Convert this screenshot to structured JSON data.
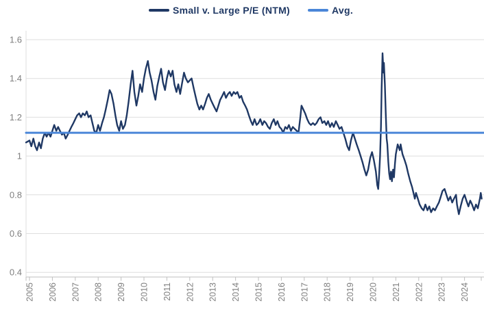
{
  "legend": {
    "series_label": "Small v. Large P/E (NTM)",
    "avg_label": "Avg."
  },
  "colors": {
    "series_line": "#1F3864",
    "avg_line": "#4A86D8",
    "legend_text": "#1F3864",
    "axis_text": "#7F7F7F",
    "gridline": "#DEDEDE",
    "axis_line": "#BFBFBF"
  },
  "chart_data": {
    "type": "line",
    "title": "",
    "xlabel": "",
    "ylabel": "",
    "grid": "horizontal-only",
    "legend_position": "top-center",
    "y_axis": {
      "range": [
        0.4,
        1.6
      ],
      "tick_values": [
        1.6,
        1.4,
        1.2,
        1.0,
        0.8,
        0.6,
        0.4
      ],
      "tick_labels": [
        "1.6",
        "1.4",
        "1.2",
        "1",
        "0.8",
        "0.6",
        "0.4"
      ]
    },
    "x_axis": {
      "range": [
        2004.85,
        2024.9
      ],
      "tick_values": [
        2005,
        2006,
        2007,
        2008,
        2009,
        2010,
        2011,
        2012,
        2013,
        2014,
        2015,
        2016,
        2017,
        2018,
        2019,
        2020,
        2021,
        2022,
        2023,
        2024
      ],
      "tick_labels": [
        "2005",
        "2006",
        "2007",
        "2008",
        "2009",
        "2010",
        "2011",
        "2012",
        "2013",
        "2014",
        "2015",
        "2016",
        "2017",
        "2018",
        "2019",
        "2020",
        "2021",
        "2022",
        "2023",
        "2024"
      ],
      "label_rotation_deg": -90
    },
    "avg": {
      "label": "Avg.",
      "value": 1.12
    },
    "series": [
      {
        "name": "Small v. Large P/E (NTM)",
        "points": [
          [
            2004.85,
            1.07
          ],
          [
            2005.0,
            1.08
          ],
          [
            2005.08,
            1.05
          ],
          [
            2005.17,
            1.09
          ],
          [
            2005.25,
            1.05
          ],
          [
            2005.33,
            1.03
          ],
          [
            2005.42,
            1.07
          ],
          [
            2005.5,
            1.04
          ],
          [
            2005.58,
            1.09
          ],
          [
            2005.67,
            1.12
          ],
          [
            2005.75,
            1.1
          ],
          [
            2005.83,
            1.12
          ],
          [
            2005.92,
            1.1
          ],
          [
            2006.0,
            1.13
          ],
          [
            2006.08,
            1.16
          ],
          [
            2006.17,
            1.13
          ],
          [
            2006.25,
            1.15
          ],
          [
            2006.33,
            1.13
          ],
          [
            2006.42,
            1.11
          ],
          [
            2006.5,
            1.12
          ],
          [
            2006.58,
            1.09
          ],
          [
            2006.67,
            1.11
          ],
          [
            2006.75,
            1.13
          ],
          [
            2006.83,
            1.15
          ],
          [
            2006.92,
            1.17
          ],
          [
            2007.0,
            1.19
          ],
          [
            2007.08,
            1.21
          ],
          [
            2007.17,
            1.22
          ],
          [
            2007.25,
            1.2
          ],
          [
            2007.33,
            1.22
          ],
          [
            2007.42,
            1.21
          ],
          [
            2007.5,
            1.23
          ],
          [
            2007.58,
            1.2
          ],
          [
            2007.67,
            1.21
          ],
          [
            2007.75,
            1.17
          ],
          [
            2007.83,
            1.13
          ],
          [
            2007.92,
            1.12
          ],
          [
            2008.0,
            1.16
          ],
          [
            2008.08,
            1.13
          ],
          [
            2008.17,
            1.17
          ],
          [
            2008.25,
            1.2
          ],
          [
            2008.33,
            1.24
          ],
          [
            2008.42,
            1.29
          ],
          [
            2008.5,
            1.34
          ],
          [
            2008.58,
            1.32
          ],
          [
            2008.67,
            1.27
          ],
          [
            2008.75,
            1.21
          ],
          [
            2008.83,
            1.16
          ],
          [
            2008.92,
            1.13
          ],
          [
            2009.0,
            1.18
          ],
          [
            2009.08,
            1.14
          ],
          [
            2009.17,
            1.16
          ],
          [
            2009.25,
            1.21
          ],
          [
            2009.33,
            1.28
          ],
          [
            2009.42,
            1.37
          ],
          [
            2009.5,
            1.44
          ],
          [
            2009.58,
            1.33
          ],
          [
            2009.67,
            1.26
          ],
          [
            2009.75,
            1.31
          ],
          [
            2009.83,
            1.37
          ],
          [
            2009.92,
            1.33
          ],
          [
            2010.0,
            1.4
          ],
          [
            2010.08,
            1.45
          ],
          [
            2010.17,
            1.49
          ],
          [
            2010.25,
            1.43
          ],
          [
            2010.33,
            1.39
          ],
          [
            2010.42,
            1.33
          ],
          [
            2010.5,
            1.29
          ],
          [
            2010.58,
            1.36
          ],
          [
            2010.67,
            1.41
          ],
          [
            2010.75,
            1.45
          ],
          [
            2010.83,
            1.38
          ],
          [
            2010.92,
            1.34
          ],
          [
            2011.0,
            1.4
          ],
          [
            2011.08,
            1.44
          ],
          [
            2011.17,
            1.41
          ],
          [
            2011.25,
            1.44
          ],
          [
            2011.33,
            1.37
          ],
          [
            2011.42,
            1.33
          ],
          [
            2011.5,
            1.37
          ],
          [
            2011.58,
            1.32
          ],
          [
            2011.67,
            1.38
          ],
          [
            2011.75,
            1.43
          ],
          [
            2011.83,
            1.4
          ],
          [
            2011.92,
            1.38
          ],
          [
            2012.0,
            1.39
          ],
          [
            2012.08,
            1.4
          ],
          [
            2012.17,
            1.35
          ],
          [
            2012.25,
            1.31
          ],
          [
            2012.33,
            1.27
          ],
          [
            2012.42,
            1.24
          ],
          [
            2012.5,
            1.26
          ],
          [
            2012.58,
            1.24
          ],
          [
            2012.67,
            1.27
          ],
          [
            2012.75,
            1.3
          ],
          [
            2012.83,
            1.32
          ],
          [
            2012.92,
            1.29
          ],
          [
            2013.0,
            1.27
          ],
          [
            2013.08,
            1.25
          ],
          [
            2013.17,
            1.23
          ],
          [
            2013.25,
            1.26
          ],
          [
            2013.33,
            1.29
          ],
          [
            2013.42,
            1.31
          ],
          [
            2013.5,
            1.33
          ],
          [
            2013.58,
            1.3
          ],
          [
            2013.67,
            1.32
          ],
          [
            2013.75,
            1.33
          ],
          [
            2013.83,
            1.31
          ],
          [
            2013.92,
            1.33
          ],
          [
            2014.0,
            1.32
          ],
          [
            2014.08,
            1.33
          ],
          [
            2014.17,
            1.3
          ],
          [
            2014.25,
            1.31
          ],
          [
            2014.33,
            1.28
          ],
          [
            2014.42,
            1.26
          ],
          [
            2014.5,
            1.24
          ],
          [
            2014.58,
            1.21
          ],
          [
            2014.67,
            1.18
          ],
          [
            2014.75,
            1.16
          ],
          [
            2014.83,
            1.19
          ],
          [
            2014.92,
            1.16
          ],
          [
            2015.0,
            1.17
          ],
          [
            2015.08,
            1.19
          ],
          [
            2015.17,
            1.16
          ],
          [
            2015.25,
            1.18
          ],
          [
            2015.33,
            1.17
          ],
          [
            2015.42,
            1.15
          ],
          [
            2015.5,
            1.14
          ],
          [
            2015.58,
            1.17
          ],
          [
            2015.67,
            1.19
          ],
          [
            2015.75,
            1.16
          ],
          [
            2015.83,
            1.18
          ],
          [
            2015.92,
            1.15
          ],
          [
            2016.0,
            1.14
          ],
          [
            2016.08,
            1.12
          ],
          [
            2016.17,
            1.15
          ],
          [
            2016.25,
            1.14
          ],
          [
            2016.33,
            1.16
          ],
          [
            2016.42,
            1.13
          ],
          [
            2016.5,
            1.15
          ],
          [
            2016.58,
            1.14
          ],
          [
            2016.67,
            1.13
          ],
          [
            2016.75,
            1.12
          ],
          [
            2016.83,
            1.2
          ],
          [
            2016.88,
            1.26
          ],
          [
            2016.96,
            1.24
          ],
          [
            2017.04,
            1.22
          ],
          [
            2017.13,
            1.19
          ],
          [
            2017.21,
            1.17
          ],
          [
            2017.29,
            1.16
          ],
          [
            2017.38,
            1.17
          ],
          [
            2017.46,
            1.16
          ],
          [
            2017.54,
            1.17
          ],
          [
            2017.63,
            1.19
          ],
          [
            2017.71,
            1.2
          ],
          [
            2017.79,
            1.17
          ],
          [
            2017.88,
            1.18
          ],
          [
            2017.96,
            1.16
          ],
          [
            2018.04,
            1.18
          ],
          [
            2018.13,
            1.15
          ],
          [
            2018.21,
            1.17
          ],
          [
            2018.29,
            1.15
          ],
          [
            2018.38,
            1.18
          ],
          [
            2018.46,
            1.16
          ],
          [
            2018.54,
            1.14
          ],
          [
            2018.63,
            1.15
          ],
          [
            2018.71,
            1.12
          ],
          [
            2018.79,
            1.09
          ],
          [
            2018.88,
            1.05
          ],
          [
            2018.96,
            1.03
          ],
          [
            2019.04,
            1.08
          ],
          [
            2019.13,
            1.12
          ],
          [
            2019.21,
            1.09
          ],
          [
            2019.29,
            1.06
          ],
          [
            2019.38,
            1.03
          ],
          [
            2019.46,
            1.0
          ],
          [
            2019.54,
            0.97
          ],
          [
            2019.63,
            0.93
          ],
          [
            2019.71,
            0.9
          ],
          [
            2019.79,
            0.93
          ],
          [
            2019.88,
            0.99
          ],
          [
            2019.96,
            1.02
          ],
          [
            2020.04,
            0.98
          ],
          [
            2020.13,
            0.92
          ],
          [
            2020.19,
            0.85
          ],
          [
            2020.23,
            0.83
          ],
          [
            2020.27,
            0.9
          ],
          [
            2020.31,
            1.0
          ],
          [
            2020.35,
            1.15
          ],
          [
            2020.38,
            1.35
          ],
          [
            2020.42,
            1.53
          ],
          [
            2020.46,
            1.43
          ],
          [
            2020.48,
            1.48
          ],
          [
            2020.52,
            1.37
          ],
          [
            2020.56,
            1.22
          ],
          [
            2020.6,
            1.09
          ],
          [
            2020.63,
            1.06
          ],
          [
            2020.67,
            0.97
          ],
          [
            2020.71,
            0.91
          ],
          [
            2020.75,
            0.88
          ],
          [
            2020.79,
            0.92
          ],
          [
            2020.83,
            0.87
          ],
          [
            2020.88,
            0.93
          ],
          [
            2020.92,
            0.89
          ],
          [
            2020.96,
            0.96
          ],
          [
            2021.0,
            1.01
          ],
          [
            2021.08,
            1.06
          ],
          [
            2021.17,
            1.03
          ],
          [
            2021.21,
            1.06
          ],
          [
            2021.29,
            1.01
          ],
          [
            2021.38,
            0.98
          ],
          [
            2021.46,
            0.95
          ],
          [
            2021.54,
            0.91
          ],
          [
            2021.63,
            0.87
          ],
          [
            2021.71,
            0.84
          ],
          [
            2021.79,
            0.8
          ],
          [
            2021.83,
            0.78
          ],
          [
            2021.88,
            0.81
          ],
          [
            2021.96,
            0.78
          ],
          [
            2022.04,
            0.75
          ],
          [
            2022.13,
            0.73
          ],
          [
            2022.21,
            0.72
          ],
          [
            2022.29,
            0.75
          ],
          [
            2022.38,
            0.72
          ],
          [
            2022.46,
            0.74
          ],
          [
            2022.54,
            0.71
          ],
          [
            2022.63,
            0.73
          ],
          [
            2022.71,
            0.72
          ],
          [
            2022.79,
            0.74
          ],
          [
            2022.88,
            0.76
          ],
          [
            2022.96,
            0.79
          ],
          [
            2023.04,
            0.82
          ],
          [
            2023.13,
            0.83
          ],
          [
            2023.21,
            0.8
          ],
          [
            2023.29,
            0.77
          ],
          [
            2023.38,
            0.79
          ],
          [
            2023.46,
            0.76
          ],
          [
            2023.54,
            0.78
          ],
          [
            2023.63,
            0.8
          ],
          [
            2023.67,
            0.75
          ],
          [
            2023.75,
            0.7
          ],
          [
            2023.83,
            0.74
          ],
          [
            2023.92,
            0.78
          ],
          [
            2024.0,
            0.8
          ],
          [
            2024.08,
            0.77
          ],
          [
            2024.17,
            0.74
          ],
          [
            2024.25,
            0.77
          ],
          [
            2024.33,
            0.75
          ],
          [
            2024.42,
            0.72
          ],
          [
            2024.5,
            0.75
          ],
          [
            2024.58,
            0.73
          ],
          [
            2024.67,
            0.78
          ],
          [
            2024.71,
            0.81
          ],
          [
            2024.75,
            0.78
          ]
        ]
      }
    ]
  }
}
